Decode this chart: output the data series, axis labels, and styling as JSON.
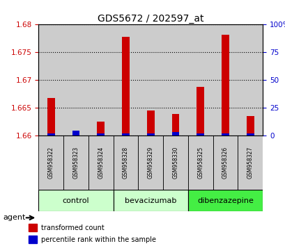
{
  "title": "GDS5672 / 202597_at",
  "samples": [
    "GSM958322",
    "GSM958323",
    "GSM958324",
    "GSM958328",
    "GSM958329",
    "GSM958330",
    "GSM958325",
    "GSM958326",
    "GSM958327"
  ],
  "red_values": [
    1.6668,
    1.6608,
    1.6625,
    1.6778,
    1.6645,
    1.6638,
    1.6688,
    1.6782,
    1.6635
  ],
  "blue_percentiles": [
    2,
    4,
    2,
    2,
    2,
    3,
    2,
    2,
    2
  ],
  "ylim_left": [
    1.66,
    1.68
  ],
  "yticks_left": [
    1.66,
    1.665,
    1.67,
    1.675,
    1.68
  ],
  "ytick_labels_left": [
    "1.66",
    "1.665",
    "1.67",
    "1.675",
    "1.68"
  ],
  "ylim_right": [
    0,
    100
  ],
  "yticks_right": [
    0,
    25,
    50,
    75,
    100
  ],
  "ytick_labels_right": [
    "0",
    "25",
    "50",
    "75",
    "100%"
  ],
  "group_defs": [
    {
      "label": "control",
      "start": 0,
      "end": 2,
      "color": "#ccffcc"
    },
    {
      "label": "bevacizumab",
      "start": 3,
      "end": 5,
      "color": "#ccffcc"
    },
    {
      "label": "dibenzazepine",
      "start": 6,
      "end": 8,
      "color": "#44ee44"
    }
  ],
  "red_color": "#cc0000",
  "blue_color": "#0000cc",
  "bar_bg_color": "#cccccc",
  "left_axis_color": "#cc0000",
  "right_axis_color": "#0000cc",
  "agent_label": "agent",
  "legend_red": "transformed count",
  "legend_blue": "percentile rank within the sample",
  "title_fontsize": 10,
  "tick_fontsize": 7.5,
  "sample_fontsize": 5.5,
  "group_fontsize": 8,
  "legend_fontsize": 7
}
